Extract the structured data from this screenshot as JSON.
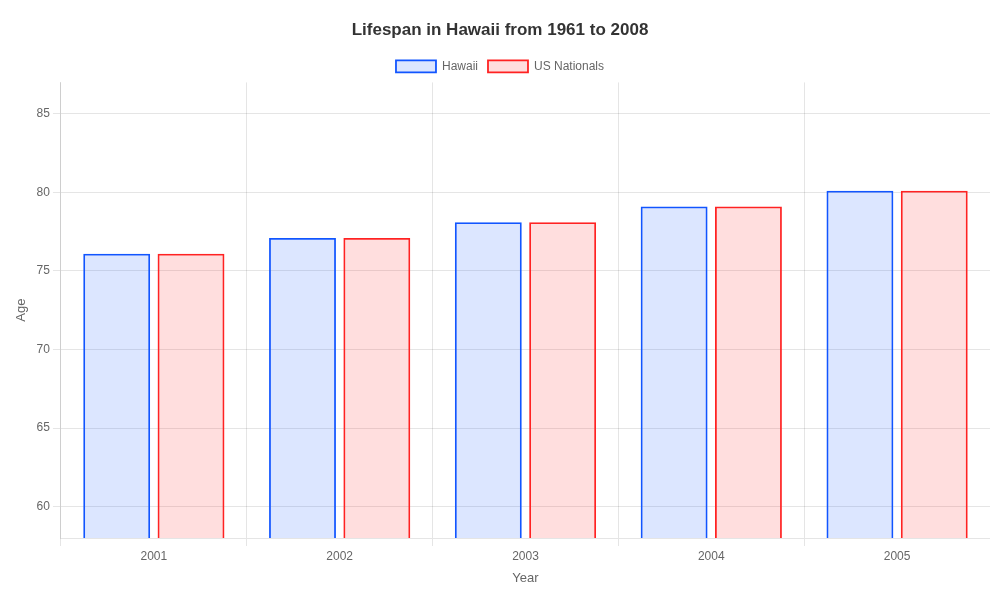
{
  "chart_data": {
    "type": "bar",
    "title": "Lifespan in Hawaii from 1961 to 2008",
    "xlabel": "Year",
    "ylabel": "Age",
    "categories": [
      "2001",
      "2002",
      "2003",
      "2004",
      "2005"
    ],
    "series": [
      {
        "name": "Hawaii",
        "color": "#1155ff",
        "values": [
          76.1,
          77.1,
          78.1,
          79.1,
          80.1
        ]
      },
      {
        "name": "US Nationals",
        "color": "#ff2222",
        "values": [
          76.1,
          77.1,
          78.1,
          79.1,
          80.1
        ]
      }
    ],
    "ylim": [
      58,
      87
    ],
    "yticks": [
      60,
      65,
      70,
      75,
      80,
      85
    ],
    "grid": true,
    "legend": "top"
  }
}
